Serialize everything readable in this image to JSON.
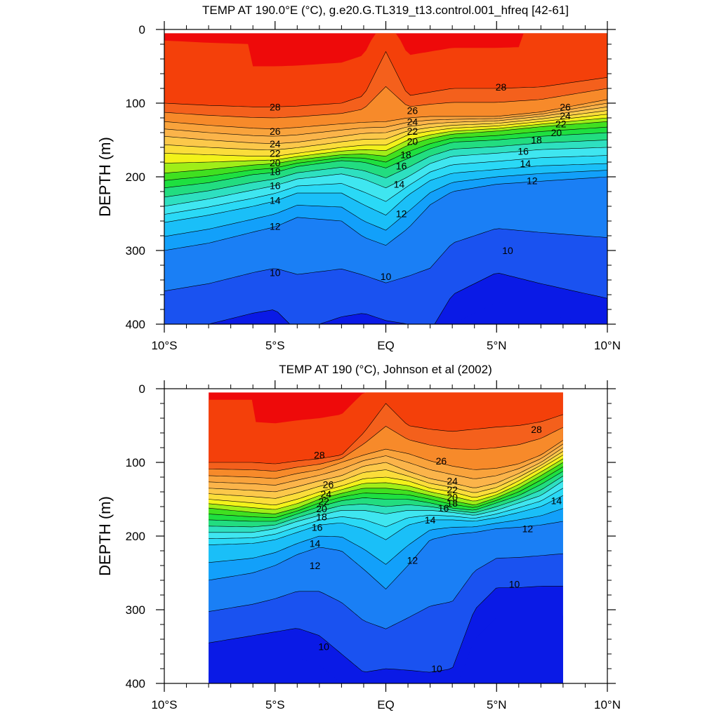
{
  "chart_data": [
    {
      "type": "contour",
      "title": "TEMP AT 190.0°E (°C), g.e20.G.TL319_t13.control.001_hfreq [42-61]",
      "ylabel": "DEPTH (m)",
      "xlabel": "",
      "x_ticks": [
        "10°S",
        "5°S",
        "EQ",
        "5°N",
        "10°N"
      ],
      "y_ticks": [
        "0",
        "100",
        "200",
        "300",
        "400"
      ],
      "xlim": [
        -10,
        10
      ],
      "ylim": [
        400,
        0
      ],
      "data_extent_lat": [
        -10,
        10
      ],
      "contour_levels": [
        10,
        11,
        12,
        13,
        14,
        15,
        16,
        17,
        18,
        19,
        20,
        21,
        22,
        23,
        24,
        25,
        26,
        27,
        28,
        29
      ],
      "level_colors": [
        "#0a1ae6",
        "#1a52f0",
        "#1a7ff5",
        "#12a0fa",
        "#1abff8",
        "#2ad9f6",
        "#3fe6f0",
        "#2ee0c0",
        "#22dd80",
        "#1ee040",
        "#40e020",
        "#a0ee18",
        "#f2f21a",
        "#fbdd3a",
        "#fcc84a",
        "#fbb44a",
        "#f9a33c",
        "#f78a2a",
        "#f4601c",
        "#f4400a",
        "#ee0a0a",
        "#cc0000"
      ],
      "isotherm_depths": {
        "lat": [
          -10,
          -8,
          -6,
          -5,
          -4,
          -2,
          -1,
          0,
          1,
          2,
          3,
          5,
          7,
          10
        ],
        "T28": [
          100,
          103,
          105,
          105,
          104,
          100,
          90,
          30,
          90,
          85,
          80,
          80,
          78,
          65
        ],
        "T26": [
          125,
          130,
          134,
          135,
          133,
          128,
          126,
          125,
          120,
          118,
          118,
          118,
          112,
          95
        ],
        "T24": [
          145,
          150,
          154,
          155,
          153,
          145,
          141,
          140,
          132,
          128,
          126,
          124,
          118,
          105
        ],
        "T22": [
          168,
          170,
          172,
          172,
          168,
          160,
          157,
          157,
          143,
          138,
          134,
          131,
          125,
          115
        ],
        "T20": [
          195,
          190,
          184,
          182,
          177,
          170,
          169,
          172,
          157,
          148,
          142,
          138,
          132,
          125
        ],
        "T18": [
          215,
          208,
          197,
          194,
          186,
          178,
          180,
          188,
          175,
          162,
          153,
          150,
          145,
          140
        ],
        "T16": [
          240,
          230,
          218,
          212,
          203,
          196,
          203,
          215,
          200,
          182,
          172,
          168,
          163,
          160
        ],
        "T14": [
          262,
          252,
          240,
          233,
          222,
          222,
          238,
          252,
          225,
          205,
          195,
          190,
          185,
          182
        ],
        "T12": [
          300,
          290,
          275,
          268,
          255,
          260,
          282,
          293,
          270,
          238,
          220,
          210,
          206,
          200
        ],
        "T10": [
          410,
          400,
          385,
          380,
          410,
          390,
          385,
          395,
          400,
          410,
          360,
          330,
          345,
          365
        ]
      },
      "labels": [
        {
          "text": "28",
          "lat": -5,
          "depth": 105
        },
        {
          "text": "26",
          "lat": -5,
          "depth": 138
        },
        {
          "text": "24",
          "lat": -5,
          "depth": 155
        },
        {
          "text": "22",
          "lat": -5,
          "depth": 168
        },
        {
          "text": "20",
          "lat": -5,
          "depth": 181
        },
        {
          "text": "18",
          "lat": -5,
          "depth": 193
        },
        {
          "text": "16",
          "lat": -5,
          "depth": 212
        },
        {
          "text": "14",
          "lat": -5,
          "depth": 232
        },
        {
          "text": "12",
          "lat": -5,
          "depth": 267
        },
        {
          "text": "10",
          "lat": -5,
          "depth": 330
        },
        {
          "text": "10",
          "lat": 0,
          "depth": 335
        },
        {
          "text": "26",
          "lat": 1.2,
          "depth": 110
        },
        {
          "text": "24",
          "lat": 1.2,
          "depth": 125
        },
        {
          "text": "22",
          "lat": 1.2,
          "depth": 138
        },
        {
          "text": "20",
          "lat": 1.2,
          "depth": 152
        },
        {
          "text": "18",
          "lat": 0.9,
          "depth": 170
        },
        {
          "text": "16",
          "lat": 0.7,
          "depth": 185
        },
        {
          "text": "14",
          "lat": 0.6,
          "depth": 210
        },
        {
          "text": "12",
          "lat": 0.7,
          "depth": 250
        },
        {
          "text": "28",
          "lat": 5.2,
          "depth": 78
        },
        {
          "text": "10",
          "lat": 5.5,
          "depth": 300
        },
        {
          "text": "26",
          "lat": 8.1,
          "depth": 105
        },
        {
          "text": "24",
          "lat": 8.1,
          "depth": 117
        },
        {
          "text": "22",
          "lat": 7.9,
          "depth": 128
        },
        {
          "text": "20",
          "lat": 7.7,
          "depth": 140
        },
        {
          "text": "18",
          "lat": 6.8,
          "depth": 150
        },
        {
          "text": "16",
          "lat": 6.2,
          "depth": 165
        },
        {
          "text": "14",
          "lat": 6.3,
          "depth": 182
        },
        {
          "text": "12",
          "lat": 6.6,
          "depth": 205
        }
      ]
    },
    {
      "type": "contour",
      "title": "TEMP AT 190 (°C), Johnson et al (2002)",
      "ylabel": "DEPTH (m)",
      "xlabel": "",
      "x_ticks": [
        "10°S",
        "5°S",
        "EQ",
        "5°N",
        "10°N"
      ],
      "y_ticks": [
        "0",
        "100",
        "200",
        "300",
        "400"
      ],
      "xlim": [
        -10,
        10
      ],
      "ylim": [
        400,
        0
      ],
      "data_extent_lat": [
        -8,
        8
      ],
      "contour_levels": [
        10,
        11,
        12,
        13,
        14,
        15,
        16,
        17,
        18,
        19,
        20,
        21,
        22,
        23,
        24,
        25,
        26,
        27,
        28,
        29
      ],
      "isotherm_depths": {
        "lat": [
          -8,
          -6,
          -5,
          -4,
          -3,
          -2,
          -1,
          0,
          1,
          2,
          3,
          4,
          5,
          6,
          7,
          8
        ],
        "T28": [
          100,
          100,
          102,
          98,
          95,
          90,
          60,
          20,
          50,
          55,
          58,
          55,
          52,
          50,
          45,
          35
        ],
        "T26": [
          118,
          120,
          122,
          115,
          110,
          100,
          90,
          82,
          88,
          98,
          105,
          110,
          108,
          102,
          90,
          70
        ],
        "T24": [
          135,
          138,
          140,
          133,
          125,
          118,
          105,
          100,
          112,
          122,
          128,
          135,
          128,
          115,
          100,
          80
        ],
        "T22": [
          150,
          155,
          158,
          150,
          140,
          132,
          122,
          120,
          125,
          135,
          140,
          148,
          140,
          125,
          108,
          90
        ],
        "T20": [
          162,
          168,
          170,
          162,
          150,
          142,
          135,
          135,
          138,
          145,
          152,
          158,
          148,
          135,
          118,
          100
        ],
        "T18": [
          178,
          180,
          180,
          170,
          160,
          152,
          148,
          150,
          150,
          155,
          162,
          165,
          155,
          145,
          130,
          112
        ],
        "T16": [
          195,
          195,
          190,
          180,
          172,
          165,
          165,
          170,
          165,
          165,
          168,
          172,
          165,
          155,
          145,
          125
        ],
        "T14": [
          212,
          210,
          205,
          195,
          185,
          182,
          190,
          205,
          185,
          178,
          178,
          180,
          175,
          168,
          160,
          145
        ],
        "T12": [
          260,
          250,
          240,
          225,
          215,
          220,
          245,
          272,
          240,
          205,
          198,
          195,
          190,
          188,
          185,
          180
        ],
        "T10": [
          345,
          335,
          330,
          325,
          335,
          360,
          385,
          380,
          382,
          385,
          380,
          300,
          270,
          270,
          268,
          268
        ]
      },
      "labels": [
        {
          "text": "28",
          "lat": -3,
          "depth": 90
        },
        {
          "text": "26",
          "lat": -2.6,
          "depth": 130
        },
        {
          "text": "24",
          "lat": -2.7,
          "depth": 143
        },
        {
          "text": "22",
          "lat": -2.8,
          "depth": 153
        },
        {
          "text": "20",
          "lat": -2.9,
          "depth": 163
        },
        {
          "text": "18",
          "lat": -2.9,
          "depth": 174
        },
        {
          "text": "16",
          "lat": -3.1,
          "depth": 188
        },
        {
          "text": "14",
          "lat": -3.2,
          "depth": 210
        },
        {
          "text": "12",
          "lat": -3.2,
          "depth": 240
        },
        {
          "text": "10",
          "lat": -2.8,
          "depth": 350
        },
        {
          "text": "10",
          "lat": 2.3,
          "depth": 380
        },
        {
          "text": "26",
          "lat": 2.5,
          "depth": 98
        },
        {
          "text": "24",
          "lat": 3.0,
          "depth": 125
        },
        {
          "text": "22",
          "lat": 3.0,
          "depth": 137
        },
        {
          "text": "20",
          "lat": 3.0,
          "depth": 147
        },
        {
          "text": "18",
          "lat": 3.0,
          "depth": 155
        },
        {
          "text": "16",
          "lat": 2.6,
          "depth": 162
        },
        {
          "text": "14",
          "lat": 2.0,
          "depth": 178
        },
        {
          "text": "12",
          "lat": 1.2,
          "depth": 233
        },
        {
          "text": "28",
          "lat": 6.8,
          "depth": 55
        },
        {
          "text": "14",
          "lat": 7.7,
          "depth": 152
        },
        {
          "text": "12",
          "lat": 6.4,
          "depth": 190
        },
        {
          "text": "10",
          "lat": 5.8,
          "depth": 265
        }
      ]
    }
  ]
}
